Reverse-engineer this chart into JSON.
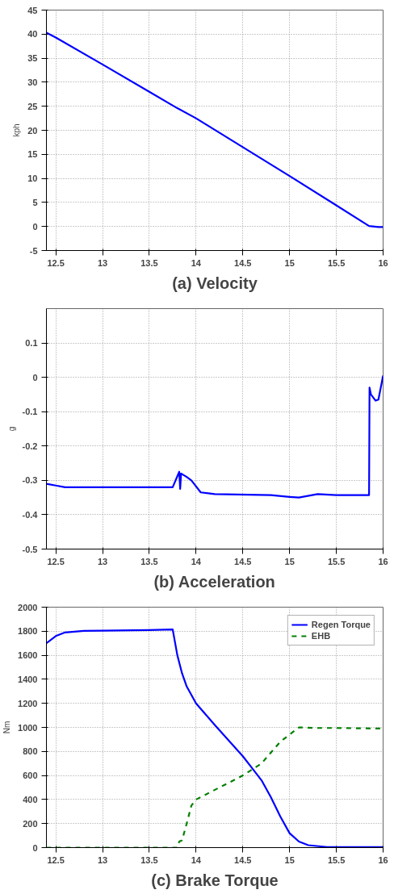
{
  "chart_data": [
    {
      "type": "line",
      "title": "(a) Velocity",
      "ylabel": "kph",
      "xlim": [
        12.4,
        16
      ],
      "xticks": [
        12.5,
        13,
        13.5,
        14,
        14.5,
        15,
        15.5,
        16
      ],
      "ylim": [
        -5,
        45
      ],
      "yticks": [
        -5,
        0,
        5,
        10,
        15,
        20,
        25,
        30,
        35,
        40,
        45
      ],
      "grid": true,
      "legend": false,
      "series": [
        {
          "color": "#0000ff",
          "x": [
            12.4,
            12.5,
            13,
            13.5,
            13.8,
            14,
            14.5,
            15,
            15.5,
            15.85,
            15.95,
            16
          ],
          "values": [
            40.3,
            39.3,
            33.7,
            28,
            24.6,
            22.5,
            16.5,
            10.5,
            4.4,
            0.1,
            -0.1,
            -0.1
          ]
        }
      ]
    },
    {
      "type": "line",
      "title": "(b) Acceleration",
      "ylabel": "g",
      "xlim": [
        12.4,
        16
      ],
      "xticks": [
        12.5,
        13,
        13.5,
        14,
        14.5,
        15,
        15.5,
        16
      ],
      "ylim": [
        -0.5,
        0.2
      ],
      "yticks": [
        -0.5,
        -0.4,
        -0.3,
        -0.2,
        -0.1,
        0,
        0.1
      ],
      "grid": true,
      "legend": false,
      "series": [
        {
          "color": "#0000ff",
          "x": [
            12.4,
            12.5,
            12.6,
            13.75,
            13.82,
            13.83,
            13.84,
            13.9,
            13.95,
            14.05,
            14.2,
            14.8,
            15,
            15.1,
            15.3,
            15.5,
            15.85,
            15.855,
            15.87,
            15.92,
            15.95,
            16
          ],
          "values": [
            -0.31,
            -0.315,
            -0.32,
            -0.32,
            -0.275,
            -0.325,
            -0.28,
            -0.29,
            -0.3,
            -0.335,
            -0.34,
            -0.343,
            -0.348,
            -0.35,
            -0.34,
            -0.343,
            -0.343,
            -0.03,
            -0.05,
            -0.068,
            -0.065,
            0.005
          ]
        }
      ]
    },
    {
      "type": "line",
      "title": "(c) Brake Torque",
      "ylabel": "Nm",
      "xlim": [
        12.4,
        16
      ],
      "xticks": [
        12.5,
        13,
        13.5,
        14,
        14.5,
        15,
        15.5,
        16
      ],
      "ylim": [
        0,
        2000
      ],
      "yticks": [
        0,
        200,
        400,
        600,
        800,
        1000,
        1200,
        1400,
        1600,
        1800,
        2000
      ],
      "grid": true,
      "legend": "top right",
      "series": [
        {
          "name": "Regen Torque",
          "color": "#0000ff",
          "line_style": "solid",
          "x": [
            12.4,
            12.5,
            12.6,
            12.8,
            13,
            13.5,
            13.75,
            13.8,
            13.85,
            13.9,
            14,
            14.2,
            14.5,
            14.6,
            14.7,
            14.8,
            14.9,
            15,
            15.1,
            15.2,
            15.4,
            16
          ],
          "values": [
            1700,
            1760,
            1790,
            1803,
            1805,
            1810,
            1815,
            1600,
            1450,
            1340,
            1200,
            1020,
            760,
            660,
            560,
            420,
            260,
            120,
            50,
            20,
            5,
            5
          ]
        },
        {
          "name": "EHB",
          "color": "#008000",
          "line_style": "dashed",
          "x": [
            12.4,
            13.8,
            13.82,
            13.85,
            13.9,
            13.95,
            14,
            14.1,
            14.3,
            14.5,
            14.7,
            14.9,
            15,
            15.1,
            15.3,
            15.5,
            16
          ],
          "values": [
            0,
            0,
            50,
            60,
            200,
            350,
            400,
            440,
            520,
            600,
            700,
            880,
            940,
            1000,
            995,
            995,
            990
          ]
        }
      ]
    }
  ]
}
